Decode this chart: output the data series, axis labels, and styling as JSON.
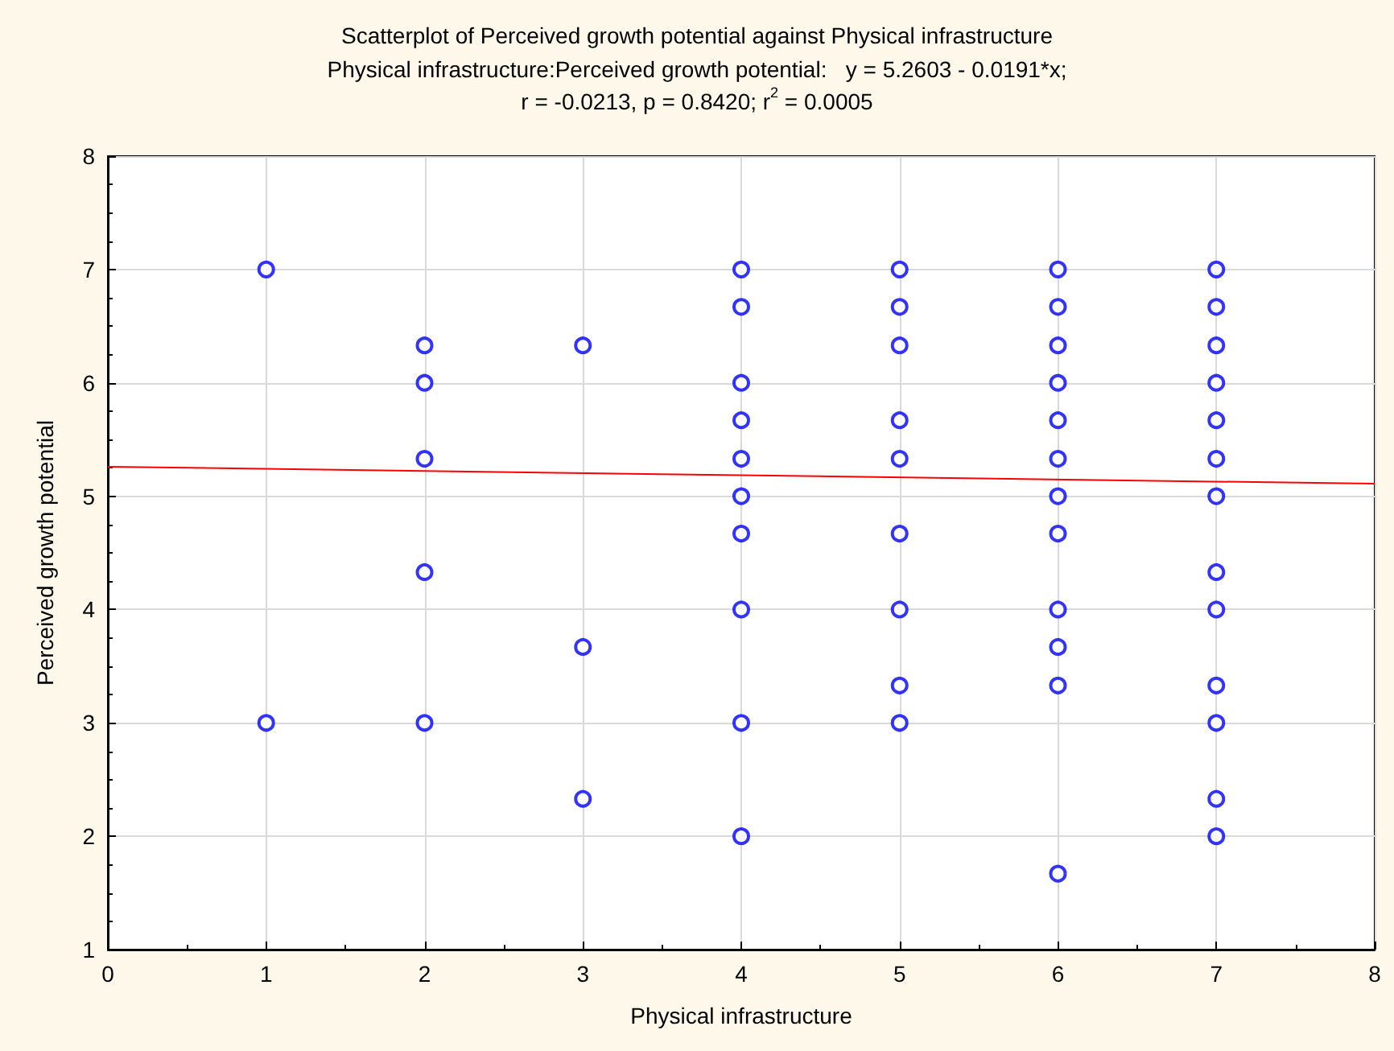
{
  "chart_data": {
    "type": "scatter",
    "title": "Scatterplot of Perceived growth potential against Physical infrastructure",
    "subtitle": "Physical infrastructure:Perceived growth potential:   y = 5.2603 - 0.0191*x;\nr = -0.0213, p = 0.8420; r$^{2}$ = 0.0005",
    "xlabel": "Physical infrastructure",
    "ylabel": "Perceived growth potential",
    "xlim": [
      0,
      8
    ],
    "xticks": [
      0,
      1,
      2,
      3,
      4,
      5,
      6,
      7,
      8
    ],
    "ylim": [
      1,
      8
    ],
    "yticks": [
      1,
      2,
      3,
      4,
      5,
      6,
      7,
      8
    ],
    "grid": true,
    "marker": "circle",
    "series": [
      {
        "color": "#0000ff",
        "x": [
          1,
          1,
          2,
          2,
          2,
          2,
          2,
          3,
          3,
          3,
          4,
          4,
          4,
          4,
          4,
          4,
          4,
          4,
          4,
          4,
          5,
          5,
          5,
          5,
          5,
          5,
          5,
          5,
          5,
          6,
          6,
          6,
          6,
          6,
          6,
          6,
          6,
          6,
          6,
          6,
          6,
          7,
          7,
          7,
          7,
          7,
          7,
          7,
          7,
          7,
          7,
          7,
          7,
          7
        ],
        "values": [
          7,
          3,
          6.33,
          6,
          5.33,
          4.33,
          3,
          6.33,
          3.67,
          2.33,
          7,
          6.67,
          6,
          5.67,
          5.33,
          5,
          4.67,
          4,
          3,
          2,
          7,
          6.67,
          6.33,
          5.67,
          5.33,
          4.67,
          4,
          3.33,
          3,
          7,
          6.67,
          6.33,
          6,
          5.67,
          5.33,
          5,
          4.67,
          4,
          3.67,
          3.33,
          1.67,
          7,
          6.67,
          6.33,
          6,
          5.67,
          5.33,
          5,
          4.33,
          4,
          3.33,
          3,
          2.33,
          2
        ]
      },
      {
        "type": "line",
        "color": "#ff0000",
        "marker": "none",
        "line_style": "solid",
        "x": [
          0,
          8
        ],
        "values": [
          5.26,
          5.11
        ]
      }
    ]
  }
}
